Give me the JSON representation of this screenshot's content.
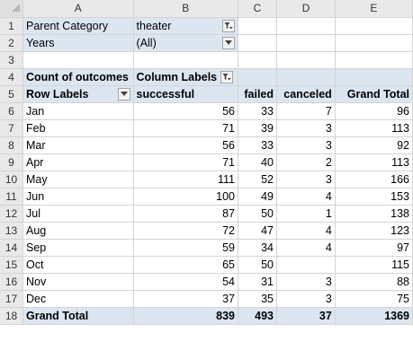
{
  "columns": [
    "A",
    "B",
    "C",
    "D",
    "E"
  ],
  "filters": [
    {
      "row": "1",
      "label": "Parent Category",
      "value": "theater",
      "filtered": true
    },
    {
      "row": "2",
      "label": "Years",
      "value": "(All)",
      "filtered": false
    }
  ],
  "empty_row": "3",
  "pivot": {
    "row4": "4",
    "row5": "5",
    "values_label": "Count of outcomes",
    "column_labels": "Column Labels",
    "row_labels": "Row Labels",
    "headers": [
      "successful",
      "failed",
      "canceled",
      "Grand Total"
    ],
    "rows": [
      {
        "row": "6",
        "label": "Jan",
        "successful": "56",
        "failed": "33",
        "canceled": "7",
        "total": "96"
      },
      {
        "row": "7",
        "label": "Feb",
        "successful": "71",
        "failed": "39",
        "canceled": "3",
        "total": "113"
      },
      {
        "row": "8",
        "label": "Mar",
        "successful": "56",
        "failed": "33",
        "canceled": "3",
        "total": "92"
      },
      {
        "row": "9",
        "label": "Apr",
        "successful": "71",
        "failed": "40",
        "canceled": "2",
        "total": "113"
      },
      {
        "row": "10",
        "label": "May",
        "successful": "111",
        "failed": "52",
        "canceled": "3",
        "total": "166"
      },
      {
        "row": "11",
        "label": "Jun",
        "successful": "100",
        "failed": "49",
        "canceled": "4",
        "total": "153"
      },
      {
        "row": "12",
        "label": "Jul",
        "successful": "87",
        "failed": "50",
        "canceled": "1",
        "total": "138"
      },
      {
        "row": "13",
        "label": "Aug",
        "successful": "72",
        "failed": "47",
        "canceled": "4",
        "total": "123"
      },
      {
        "row": "14",
        "label": "Sep",
        "successful": "59",
        "failed": "34",
        "canceled": "4",
        "total": "97"
      },
      {
        "row": "15",
        "label": "Oct",
        "successful": "65",
        "failed": "50",
        "canceled": "",
        "total": "115"
      },
      {
        "row": "16",
        "label": "Nov",
        "successful": "54",
        "failed": "31",
        "canceled": "3",
        "total": "88"
      },
      {
        "row": "17",
        "label": "Dec",
        "successful": "37",
        "failed": "35",
        "canceled": "3",
        "total": "75"
      }
    ],
    "grand_total": {
      "row": "18",
      "label": "Grand Total",
      "successful": "839",
      "failed": "493",
      "canceled": "37",
      "total": "1369"
    }
  },
  "colors": {
    "pivot_fill": "#dce6f1",
    "header_fill": "#e9e9e9",
    "gridline": "#d4d4d4"
  }
}
